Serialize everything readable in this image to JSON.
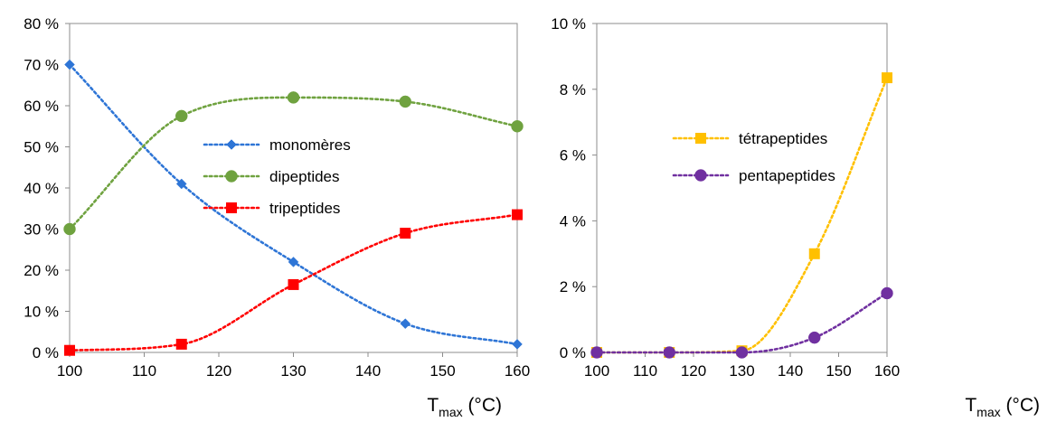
{
  "chart_data": [
    {
      "type": "line",
      "xlabel": "T",
      "xlabel_subscript": "max",
      "xlabel_unit": " (°C)",
      "xlim": [
        100,
        160
      ],
      "ylim": [
        0,
        80
      ],
      "x_ticks": [
        100,
        110,
        120,
        130,
        140,
        150,
        160
      ],
      "y_ticks": [
        0,
        10,
        20,
        30,
        40,
        50,
        60,
        70,
        80
      ],
      "y_tick_labels": [
        "0 %",
        "10 %",
        "20 %",
        "30 %",
        "40 %",
        "50 %",
        "60 %",
        "70 %",
        "80 %"
      ],
      "grid": false,
      "legend_position": "center",
      "x": [
        100,
        115,
        130,
        145,
        160
      ],
      "series": [
        {
          "name": "monomères",
          "values": [
            70,
            41,
            22,
            7,
            2
          ],
          "color": "#2E75D6",
          "marker": "diamond"
        },
        {
          "name": "dipeptides",
          "values": [
            30,
            57.5,
            62,
            61,
            55
          ],
          "color": "#6FA23F",
          "marker": "circle"
        },
        {
          "name": "tripeptides",
          "values": [
            0.5,
            2,
            16.5,
            29,
            33.5
          ],
          "color": "#FF0000",
          "marker": "square"
        }
      ]
    },
    {
      "type": "line",
      "xlabel": "T",
      "xlabel_subscript": "max",
      "xlabel_unit": " (°C)",
      "xlim": [
        100,
        160
      ],
      "ylim": [
        0,
        10
      ],
      "x_ticks": [
        100,
        110,
        120,
        130,
        140,
        150,
        160
      ],
      "y_ticks": [
        0,
        2,
        4,
        6,
        8,
        10
      ],
      "y_tick_labels": [
        "0 %",
        "2 %",
        "4 %",
        "6 %",
        "8 %",
        "10 %"
      ],
      "grid": false,
      "legend_position": "top-center",
      "x": [
        100,
        115,
        130,
        145,
        160
      ],
      "series": [
        {
          "name": "tétrapeptides",
          "values": [
            0,
            0,
            0.05,
            3,
            8.35
          ],
          "color": "#FFC000",
          "marker": "square"
        },
        {
          "name": "pentapeptides",
          "values": [
            0,
            0,
            0,
            0.45,
            1.8
          ],
          "color": "#7030A0",
          "marker": "circle"
        }
      ]
    }
  ]
}
